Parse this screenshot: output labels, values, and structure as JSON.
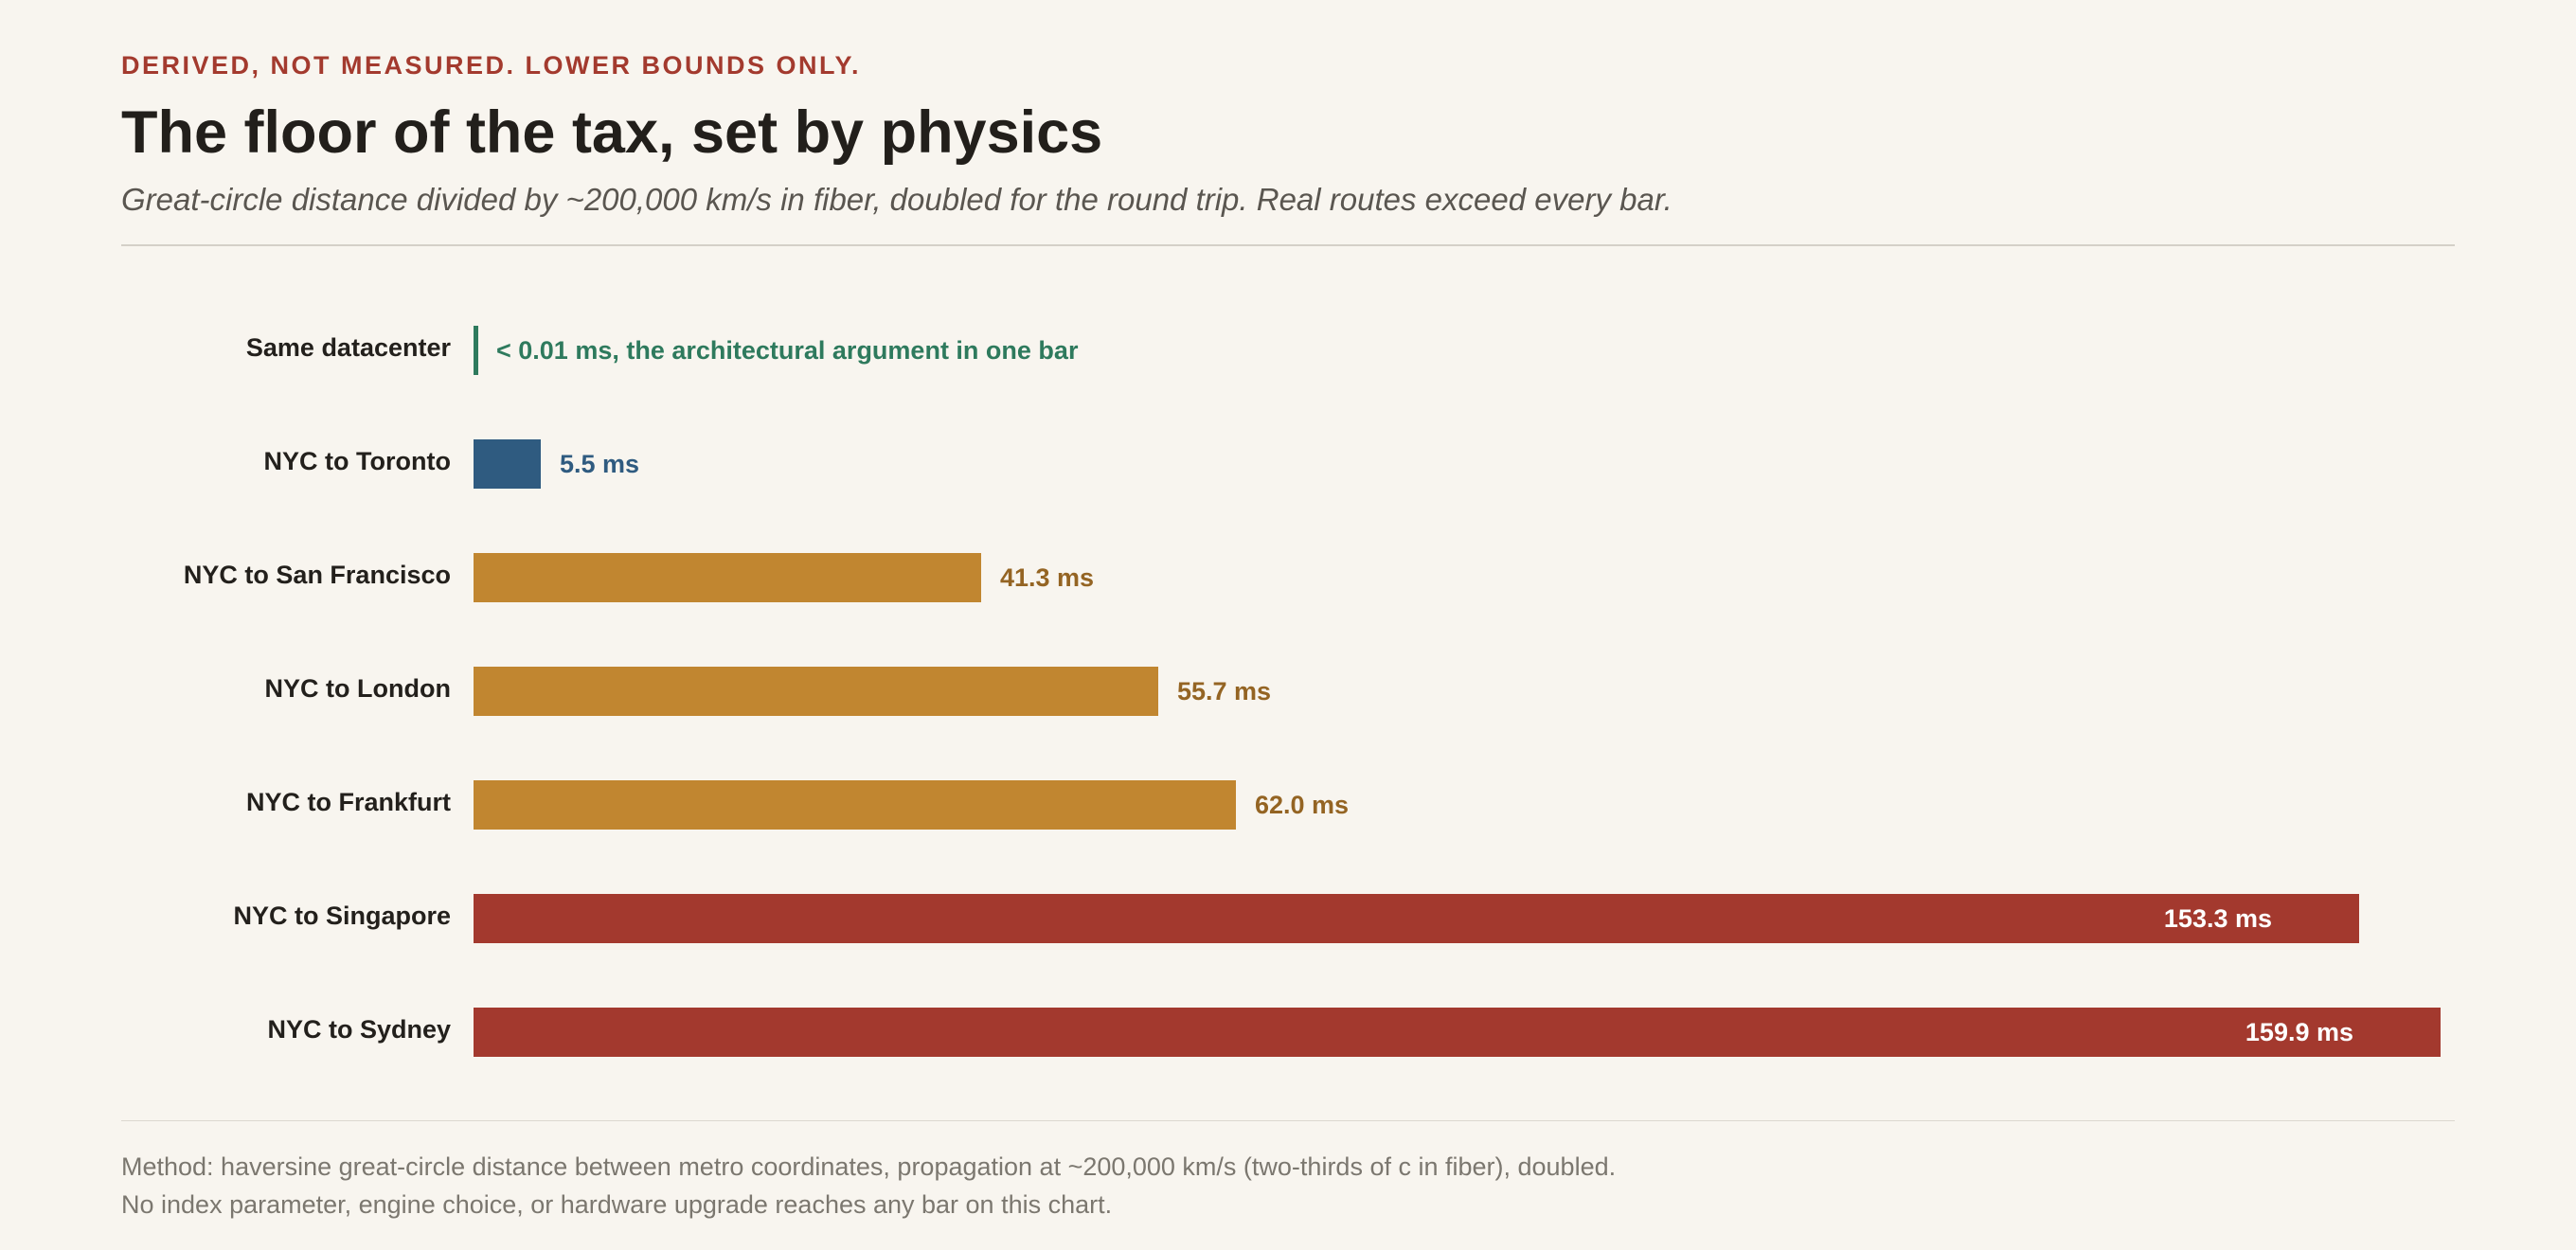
{
  "header": {
    "eyebrow": "DERIVED, NOT MEASURED. LOWER BOUNDS ONLY.",
    "title": "The floor of the tax, set by physics",
    "subtitle": "Great-circle distance divided by ~200,000 km/s in fiber, doubled for the round trip. Real routes exceed every bar."
  },
  "colors": {
    "same_dc": "#2e7a5d",
    "regional": "#2f5b80",
    "continental": "#c18630",
    "continental_text": "#946423",
    "intercontinental": "#a3392e",
    "inside_label": "#ffffff"
  },
  "chart_data": {
    "type": "bar",
    "orientation": "horizontal",
    "categories": [
      "Same datacenter",
      "NYC to Toronto",
      "NYC to San Francisco",
      "NYC to London",
      "NYC to Frankfurt",
      "NYC to Singapore",
      "NYC to Sydney"
    ],
    "values": [
      0.01,
      5.5,
      41.3,
      55.7,
      62.0,
      153.3,
      159.9
    ],
    "value_labels": [
      "< 0.01 ms, the architectural argument in one bar",
      "5.5 ms",
      "41.3 ms",
      "55.7 ms",
      "62.0 ms",
      "153.3 ms",
      "159.9 ms"
    ],
    "groups": [
      "same_dc",
      "regional",
      "continental",
      "continental",
      "continental",
      "intercontinental",
      "intercontinental"
    ],
    "unit": "ms",
    "xlim": [
      0,
      160
    ],
    "grid": false,
    "legend": "none"
  },
  "footer": {
    "line1": "Method: haversine great-circle distance between metro coordinates, propagation at ~200,000 km/s (two-thirds of c in fiber), doubled.",
    "line2": "No index parameter, engine choice, or hardware upgrade reaches any bar on this chart."
  }
}
